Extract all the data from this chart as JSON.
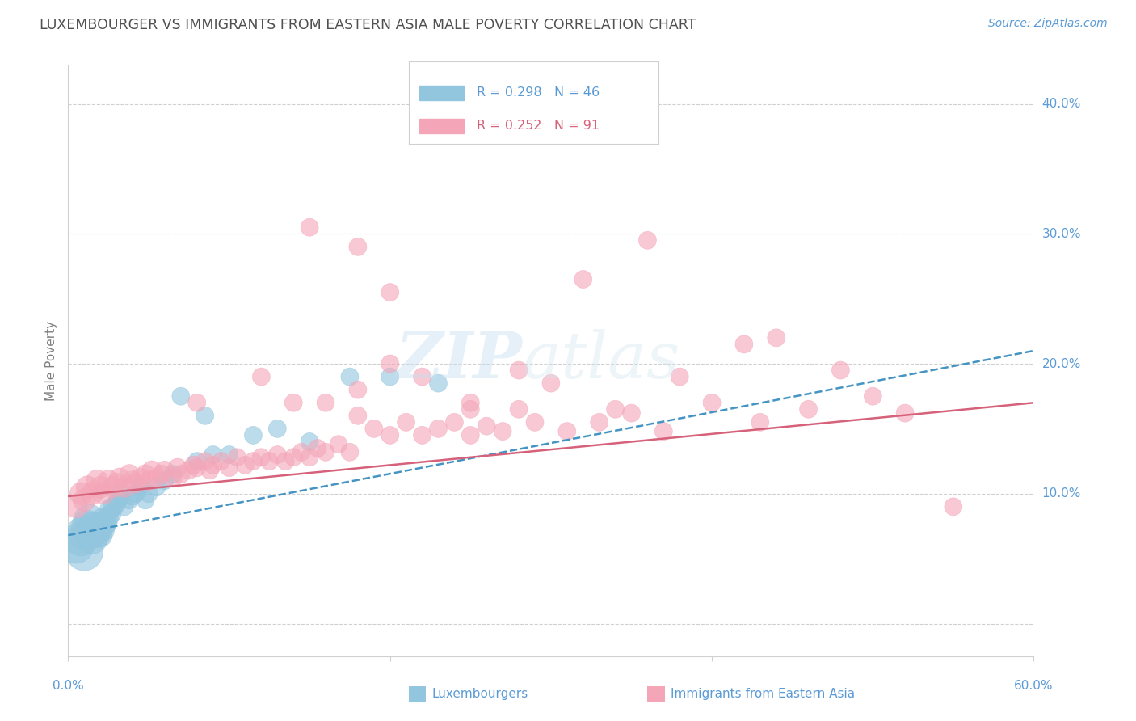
{
  "title": "LUXEMBOURGER VS IMMIGRANTS FROM EASTERN ASIA MALE POVERTY CORRELATION CHART",
  "source": "Source: ZipAtlas.com",
  "ylabel": "Male Poverty",
  "yticks": [
    0.0,
    0.1,
    0.2,
    0.3,
    0.4
  ],
  "ytick_labels": [
    "",
    "10.0%",
    "20.0%",
    "30.0%",
    "40.0%"
  ],
  "xlim": [
    0.0,
    0.6
  ],
  "ylim": [
    -0.025,
    0.43
  ],
  "legend_r1": "R = 0.298",
  "legend_n1": "N = 46",
  "legend_r2": "R = 0.252",
  "legend_n2": "N = 91",
  "color_blue": "#92c5de",
  "color_pink": "#f4a6b8",
  "line_blue": "#4393c3",
  "line_pink": "#d6617a",
  "color_blue_legend": "#92c5de",
  "color_pink_legend": "#f4a6b8",
  "blue_points_x": [
    0.005,
    0.008,
    0.01,
    0.01,
    0.012,
    0.013,
    0.015,
    0.015,
    0.016,
    0.017,
    0.018,
    0.019,
    0.02,
    0.02,
    0.021,
    0.022,
    0.023,
    0.024,
    0.025,
    0.026,
    0.027,
    0.028,
    0.03,
    0.031,
    0.033,
    0.035,
    0.038,
    0.04,
    0.042,
    0.045,
    0.048,
    0.05,
    0.055,
    0.06,
    0.065,
    0.07,
    0.08,
    0.085,
    0.09,
    0.1,
    0.115,
    0.13,
    0.15,
    0.175,
    0.2,
    0.23
  ],
  "blue_points_y": [
    0.06,
    0.065,
    0.055,
    0.07,
    0.075,
    0.08,
    0.065,
    0.075,
    0.07,
    0.075,
    0.068,
    0.072,
    0.068,
    0.075,
    0.08,
    0.072,
    0.076,
    0.078,
    0.082,
    0.088,
    0.085,
    0.09,
    0.092,
    0.095,
    0.1,
    0.09,
    0.095,
    0.098,
    0.1,
    0.105,
    0.095,
    0.1,
    0.105,
    0.11,
    0.115,
    0.175,
    0.125,
    0.16,
    0.13,
    0.13,
    0.145,
    0.15,
    0.14,
    0.19,
    0.19,
    0.185
  ],
  "blue_sizes": [
    200,
    180,
    220,
    190,
    160,
    150,
    140,
    130,
    120,
    110,
    100,
    95,
    90,
    85,
    80,
    75,
    70,
    70,
    65,
    65,
    60,
    60,
    55,
    55,
    55,
    50,
    50,
    50,
    50,
    50,
    50,
    50,
    50,
    50,
    50,
    50,
    50,
    50,
    50,
    50,
    50,
    50,
    50,
    50,
    50,
    50
  ],
  "pink_points_x": [
    0.005,
    0.008,
    0.01,
    0.012,
    0.015,
    0.018,
    0.02,
    0.022,
    0.025,
    0.028,
    0.03,
    0.032,
    0.035,
    0.038,
    0.04,
    0.042,
    0.045,
    0.048,
    0.05,
    0.052,
    0.055,
    0.058,
    0.06,
    0.065,
    0.068,
    0.07,
    0.075,
    0.078,
    0.08,
    0.085,
    0.088,
    0.09,
    0.095,
    0.1,
    0.105,
    0.11,
    0.115,
    0.12,
    0.125,
    0.13,
    0.135,
    0.14,
    0.145,
    0.15,
    0.155,
    0.16,
    0.168,
    0.175,
    0.18,
    0.19,
    0.2,
    0.21,
    0.22,
    0.23,
    0.24,
    0.25,
    0.26,
    0.27,
    0.28,
    0.29,
    0.31,
    0.33,
    0.35,
    0.37,
    0.4,
    0.43,
    0.46,
    0.08,
    0.12,
    0.14,
    0.16,
    0.18,
    0.2,
    0.22,
    0.25,
    0.28,
    0.32,
    0.36,
    0.25,
    0.3,
    0.18,
    0.2,
    0.15,
    0.38,
    0.42,
    0.34,
    0.44,
    0.48,
    0.5,
    0.52,
    0.55
  ],
  "pink_points_y": [
    0.09,
    0.1,
    0.095,
    0.105,
    0.1,
    0.11,
    0.105,
    0.1,
    0.11,
    0.105,
    0.108,
    0.112,
    0.105,
    0.115,
    0.11,
    0.108,
    0.112,
    0.115,
    0.11,
    0.118,
    0.112,
    0.115,
    0.118,
    0.112,
    0.12,
    0.115,
    0.118,
    0.122,
    0.12,
    0.125,
    0.118,
    0.122,
    0.125,
    0.12,
    0.128,
    0.122,
    0.125,
    0.128,
    0.125,
    0.13,
    0.125,
    0.128,
    0.132,
    0.128,
    0.135,
    0.132,
    0.138,
    0.132,
    0.16,
    0.15,
    0.145,
    0.155,
    0.145,
    0.15,
    0.155,
    0.145,
    0.152,
    0.148,
    0.165,
    0.155,
    0.148,
    0.155,
    0.162,
    0.148,
    0.17,
    0.155,
    0.165,
    0.17,
    0.19,
    0.17,
    0.17,
    0.18,
    0.2,
    0.19,
    0.165,
    0.195,
    0.265,
    0.295,
    0.17,
    0.185,
    0.29,
    0.255,
    0.305,
    0.19,
    0.215,
    0.165,
    0.22,
    0.195,
    0.175,
    0.162,
    0.09
  ],
  "pink_sizes": [
    80,
    80,
    80,
    80,
    75,
    75,
    75,
    70,
    70,
    70,
    65,
    65,
    65,
    60,
    60,
    60,
    60,
    58,
    58,
    58,
    55,
    55,
    55,
    55,
    55,
    52,
    52,
    52,
    52,
    50,
    50,
    50,
    50,
    50,
    50,
    50,
    50,
    50,
    50,
    50,
    50,
    50,
    50,
    50,
    50,
    50,
    50,
    50,
    50,
    50,
    50,
    50,
    50,
    50,
    50,
    50,
    50,
    50,
    50,
    50,
    50,
    50,
    50,
    50,
    50,
    50,
    50,
    50,
    50,
    50,
    50,
    50,
    50,
    50,
    50,
    50,
    50,
    50,
    50,
    50,
    50,
    50,
    50,
    50,
    50,
    50,
    50,
    50,
    50,
    50,
    50
  ],
  "blue_trend_x": [
    0.0,
    0.6
  ],
  "blue_trend_y": [
    0.068,
    0.21
  ],
  "pink_trend_x": [
    0.0,
    0.6
  ],
  "pink_trend_y": [
    0.098,
    0.17
  ],
  "grid_color": "#d0d0d0",
  "bg_color": "#ffffff",
  "tick_color": "#5b9bd5",
  "title_color": "#505050",
  "source_color": "#5b9bd5",
  "ylabel_color": "#808080"
}
